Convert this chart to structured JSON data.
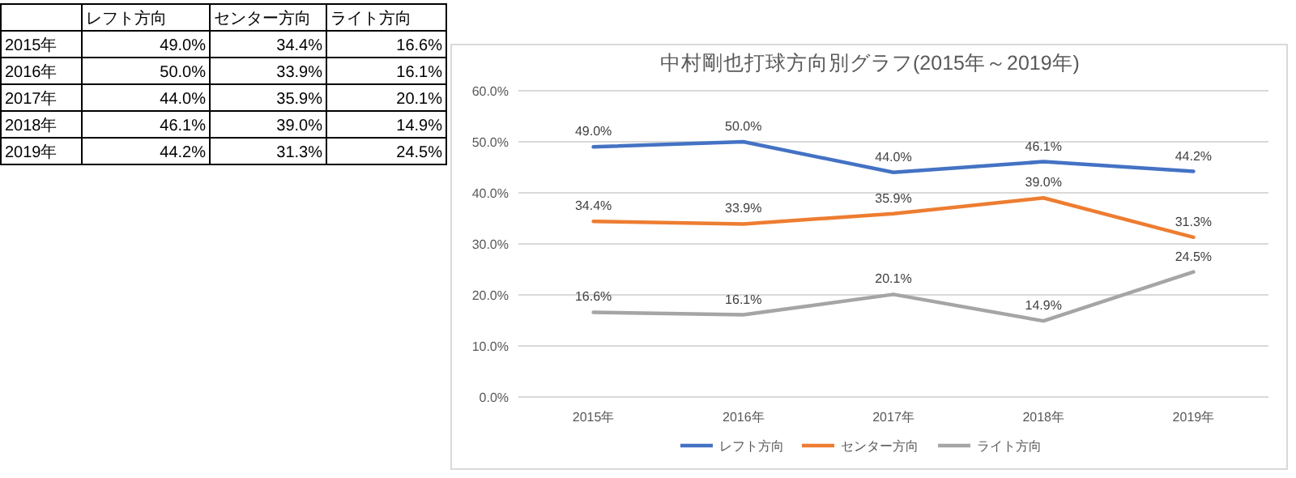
{
  "chart_data": {
    "type": "line",
    "title": "中村剛也打球方向別グラフ(2015年～2019年)",
    "categories": [
      "2015年",
      "2016年",
      "2017年",
      "2018年",
      "2019年"
    ],
    "series": [
      {
        "name": "レフト方向",
        "color": "#4472c4",
        "values": [
          49.0,
          50.0,
          44.0,
          46.1,
          44.2
        ],
        "value_labels": [
          "49.0%",
          "50.0%",
          "44.0%",
          "46.1%",
          "44.2%"
        ]
      },
      {
        "name": "センター方向",
        "color": "#ed7d31",
        "values": [
          34.4,
          33.9,
          35.9,
          39.0,
          31.3
        ],
        "value_labels": [
          "34.4%",
          "33.9%",
          "35.9%",
          "39.0%",
          "31.3%"
        ]
      },
      {
        "name": "ライト方向",
        "color": "#a5a5a5",
        "values": [
          16.6,
          16.1,
          20.1,
          14.9,
          24.5
        ],
        "value_labels": [
          "16.6%",
          "16.1%",
          "20.1%",
          "14.9%",
          "24.5%"
        ]
      }
    ],
    "ylim": [
      0,
      60
    ],
    "yticks": [
      {
        "value": 0,
        "label": "0.0%"
      },
      {
        "value": 10,
        "label": "10.0%"
      },
      {
        "value": 20,
        "label": "20.0%"
      },
      {
        "value": 30,
        "label": "30.0%"
      },
      {
        "value": 40,
        "label": "40.0%"
      },
      {
        "value": 50,
        "label": "50.0%"
      },
      {
        "value": 60,
        "label": "60.0%"
      }
    ],
    "grid": "y",
    "legend": "bottom",
    "marker": "none",
    "line_style": "solid"
  }
}
